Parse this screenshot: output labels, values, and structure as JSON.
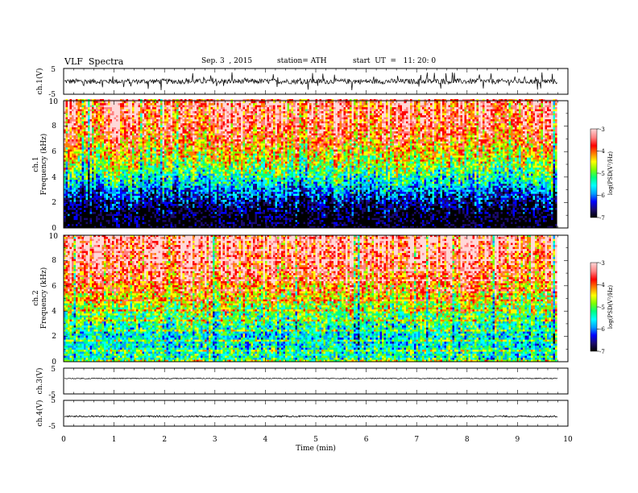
{
  "header": {
    "title": "VLF  Spectra",
    "date": "Sep. 3  , 2015",
    "station": "station= ATH",
    "start": "start  UT  =   11: 20: 0"
  },
  "chart_data": [
    {
      "type": "line",
      "panel": "ch1-waveform",
      "ylabel": "ch.1(V)",
      "ylim": [
        -5,
        5
      ],
      "yticks": [
        "5",
        "-5"
      ],
      "xlim": [
        0,
        10
      ],
      "data_end_min": 9.8,
      "baseline_v": 0.0,
      "typical_amplitude_v": 1.0,
      "spike_max_v": 3.5
    },
    {
      "type": "heatmap",
      "panel": "ch1-spectrogram",
      "ylabel": "ch.1\nFrequency  (kHz)",
      "ylabel_line1": "ch.1",
      "ylabel_line2": "Frequency  (kHz)",
      "ylim": [
        0,
        10
      ],
      "yticks": [
        "0",
        "2",
        "4",
        "6",
        "8",
        "10"
      ],
      "xlim": [
        0,
        10
      ],
      "data_end_min": 9.8,
      "colorbar": {
        "label": "log(PSD(V²/Hz)",
        "range": [
          -7,
          -3
        ],
        "ticks": [
          "-3",
          "-4",
          "-5",
          "-6",
          "-7"
        ]
      },
      "psd_profile_by_khz": [
        [
          0,
          -7.0
        ],
        [
          1,
          -6.8
        ],
        [
          2,
          -6.4
        ],
        [
          3,
          -5.8
        ],
        [
          4,
          -5.2
        ],
        [
          5,
          -4.7
        ],
        [
          6,
          -4.3
        ],
        [
          7,
          -3.9
        ],
        [
          8,
          -3.6
        ],
        [
          10,
          -3.4
        ]
      ]
    },
    {
      "type": "heatmap",
      "panel": "ch2-spectrogram",
      "ylabel": "ch.2\nFrequency  (kHz)",
      "ylabel_line1": "ch.2",
      "ylabel_line2": "Frequency  (kHz)",
      "ylim": [
        0,
        10
      ],
      "yticks": [
        "0",
        "2",
        "4",
        "6",
        "8",
        "10"
      ],
      "xlim": [
        0,
        10
      ],
      "data_end_min": 9.8,
      "colorbar": {
        "label": "log(PSD(V²/Hz)",
        "range": [
          -7,
          -3
        ],
        "ticks": [
          "-3",
          "-4",
          "-5",
          "-6",
          "-7"
        ]
      },
      "psd_profile_by_khz": [
        [
          0,
          -5.2
        ],
        [
          1,
          -5.4
        ],
        [
          2,
          -5.5
        ],
        [
          3,
          -5.2
        ],
        [
          4,
          -4.9
        ],
        [
          5,
          -4.5
        ],
        [
          6,
          -4.1
        ],
        [
          7,
          -3.8
        ],
        [
          8,
          -3.6
        ],
        [
          10,
          -3.4
        ]
      ]
    },
    {
      "type": "line",
      "panel": "ch3-waveform",
      "ylabel": "ch.3(V)",
      "ylim": [
        -5,
        5
      ],
      "yticks": [
        "5",
        "-5"
      ],
      "xlim": [
        0,
        10
      ],
      "data_end_min": 9.8,
      "baseline_v": 1.0,
      "typical_amplitude_v": 0.2
    },
    {
      "type": "line",
      "panel": "ch4-waveform",
      "ylabel": "ch.4(V)",
      "ylim": [
        -5,
        5
      ],
      "yticks": [
        "5",
        "-5"
      ],
      "xlim": [
        0,
        10
      ],
      "data_end_min": 9.8,
      "baseline_v": -1.2,
      "typical_amplitude_v": 0.3
    }
  ],
  "xaxis": {
    "label": "Time  (min)",
    "ticks": [
      "0",
      "1",
      "2",
      "3",
      "4",
      "5",
      "6",
      "7",
      "8",
      "9",
      "10"
    ],
    "range": [
      0,
      10
    ]
  },
  "colors": {
    "colormap": [
      "#000000",
      "#1a0a6e",
      "#0000ff",
      "#00a0ff",
      "#00ffff",
      "#00ff80",
      "#80ff00",
      "#ffff00",
      "#ff8000",
      "#ff0000",
      "#ff8080",
      "#ffd8d8"
    ]
  }
}
